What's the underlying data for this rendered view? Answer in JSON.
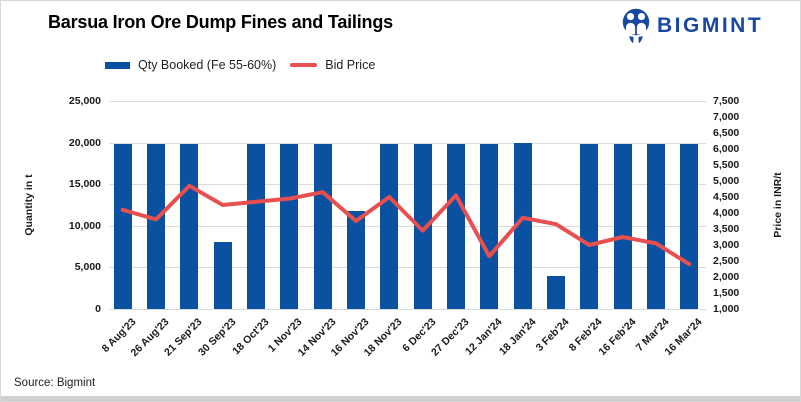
{
  "header": {
    "title": "Barsua Iron Ore Dump Fines and Tailings",
    "logo_text": "BIGMINT"
  },
  "source": "Source: Bigmint",
  "colors": {
    "bar_blue": "#0B51A1",
    "line_red": "#E8504F",
    "logo_blue": "#1849A0",
    "grid_gray": "#DADADA",
    "text_dark": "#1A1A1A"
  },
  "chart_data": {
    "type": "bar",
    "subtype": "combo bar+line, dual axis",
    "title": "Barsua Iron Ore Dump Fines and Tailings",
    "grid": "horizontal only",
    "legend_position": "top-left",
    "x_tick_rotation": 45,
    "categories": [
      "8 Aug'23",
      "26 Aug'23",
      "21 Sep'23",
      "30 Sep'23",
      "18 Oct'23",
      "1 Nov'23",
      "14 Nov'23",
      "16 Nov'23",
      "18 Nov'23",
      "6 Dec'23",
      "27 Dec'23",
      "12 Jan'24",
      "18 Jan'24",
      "3 Feb'24",
      "8 Feb'24",
      "16 Feb'24",
      "7 Mar'24",
      "16 Mar'24"
    ],
    "series": [
      {
        "name": "Qty Booked (Fe 55-60%)",
        "type": "bar",
        "axis": "left",
        "color": "#0B51A1",
        "values": [
          19800,
          19800,
          19800,
          8000,
          19800,
          19800,
          19800,
          11800,
          19800,
          19800,
          19800,
          19800,
          20000,
          4000,
          19800,
          19800,
          19800,
          19800
        ]
      },
      {
        "name": "Bid Price",
        "type": "line",
        "axis": "right",
        "color": "#E8504F",
        "values": [
          4100,
          3800,
          4850,
          4250,
          4350,
          4450,
          4650,
          3750,
          4500,
          3450,
          4550,
          2650,
          3850,
          3650,
          3000,
          3250,
          3050,
          2400
        ]
      }
    ],
    "left_axis": {
      "label": "Quantity in t",
      "min": 0,
      "max": 25000,
      "ticks": [
        0,
        5000,
        10000,
        15000,
        20000,
        25000
      ]
    },
    "right_axis": {
      "label": "Price in INR/t",
      "min": 1000,
      "max": 7500,
      "ticks": [
        1000,
        1500,
        2000,
        2500,
        3000,
        3500,
        4000,
        4500,
        5000,
        5500,
        6000,
        6500,
        7000,
        7500
      ]
    }
  }
}
